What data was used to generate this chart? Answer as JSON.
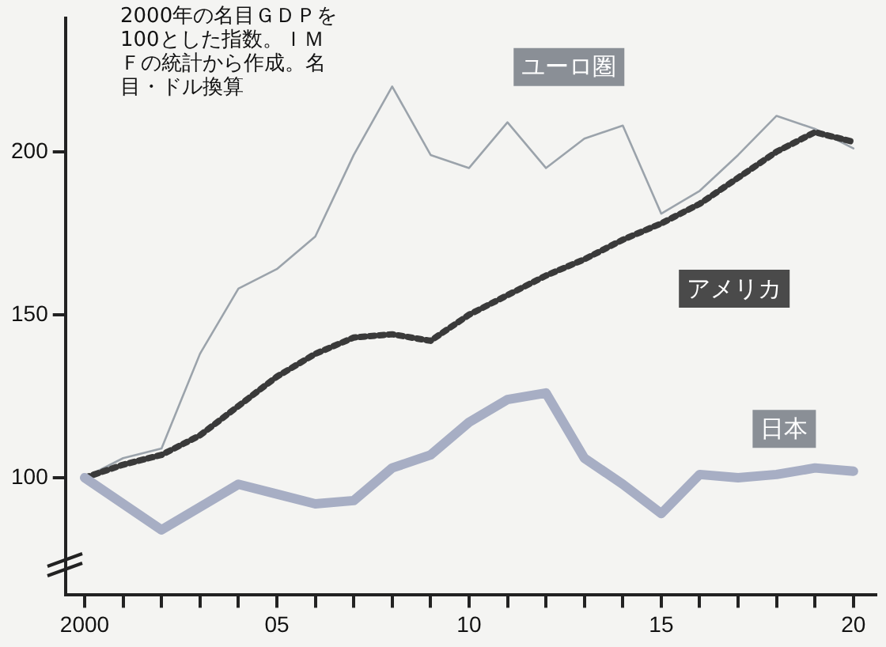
{
  "chart_data": {
    "type": "line",
    "annotations": [
      "2000年の名目ＧＤＰを100とした指数。ＩＭＦの統計から作成。名目・ドル換算"
    ],
    "x": [
      2000,
      2001,
      2002,
      2003,
      2004,
      2005,
      2006,
      2007,
      2008,
      2009,
      2010,
      2011,
      2012,
      2013,
      2014,
      2015,
      2016,
      2017,
      2018,
      2019,
      2020
    ],
    "series": [
      {
        "name": "ユーロ圏",
        "color": "#9ba3ab",
        "line_style": "solid",
        "values": [
          100,
          106,
          109,
          138,
          158,
          164,
          174,
          199,
          220,
          199,
          195,
          209,
          195,
          204,
          208,
          181,
          188,
          199,
          211,
          207,
          201
        ]
      },
      {
        "name": "アメリカ",
        "color": "#3a3a3a",
        "line_style": "dotted",
        "values": [
          100,
          104,
          107,
          113,
          122,
          131,
          138,
          143,
          144,
          142,
          150,
          156,
          162,
          167,
          173,
          178,
          184,
          192,
          200,
          206,
          203
        ]
      },
      {
        "name": "日本",
        "color": "#a7aec4",
        "line_style": "solid",
        "values": [
          100,
          92,
          84,
          91,
          98,
          95,
          92,
          93,
          103,
          107,
          117,
          124,
          126,
          106,
          98,
          89,
          101,
          100,
          101,
          103,
          102
        ]
      }
    ],
    "xlim": [
      1999.5,
      2020.6
    ],
    "xticks": [
      2000,
      {
        "value": 2001,
        "label": null
      },
      {
        "value": 2002,
        "label": null
      },
      {
        "value": 2003,
        "label": null
      },
      {
        "value": 2004,
        "label": null
      },
      {
        "value": 2005,
        "label": "05"
      },
      {
        "value": 2006,
        "label": null
      },
      {
        "value": 2007,
        "label": null
      },
      {
        "value": 2008,
        "label": null
      },
      {
        "value": 2009,
        "label": null
      },
      {
        "value": 2010,
        "label": "10"
      },
      {
        "value": 2011,
        "label": null
      },
      {
        "value": 2012,
        "label": null
      },
      {
        "value": 2013,
        "label": null
      },
      {
        "value": 2014,
        "label": null
      },
      {
        "value": 2015,
        "label": "15"
      },
      {
        "value": 2016,
        "label": null
      },
      {
        "value": 2017,
        "label": null
      },
      {
        "value": 2018,
        "label": null
      },
      {
        "value": 2019,
        "label": null
      },
      {
        "value": 2020,
        "label": "20"
      }
    ],
    "ylim": [
      64,
      241
    ],
    "yticks": [
      100,
      150,
      200
    ],
    "grid": false,
    "legend": false,
    "marker": "none"
  }
}
